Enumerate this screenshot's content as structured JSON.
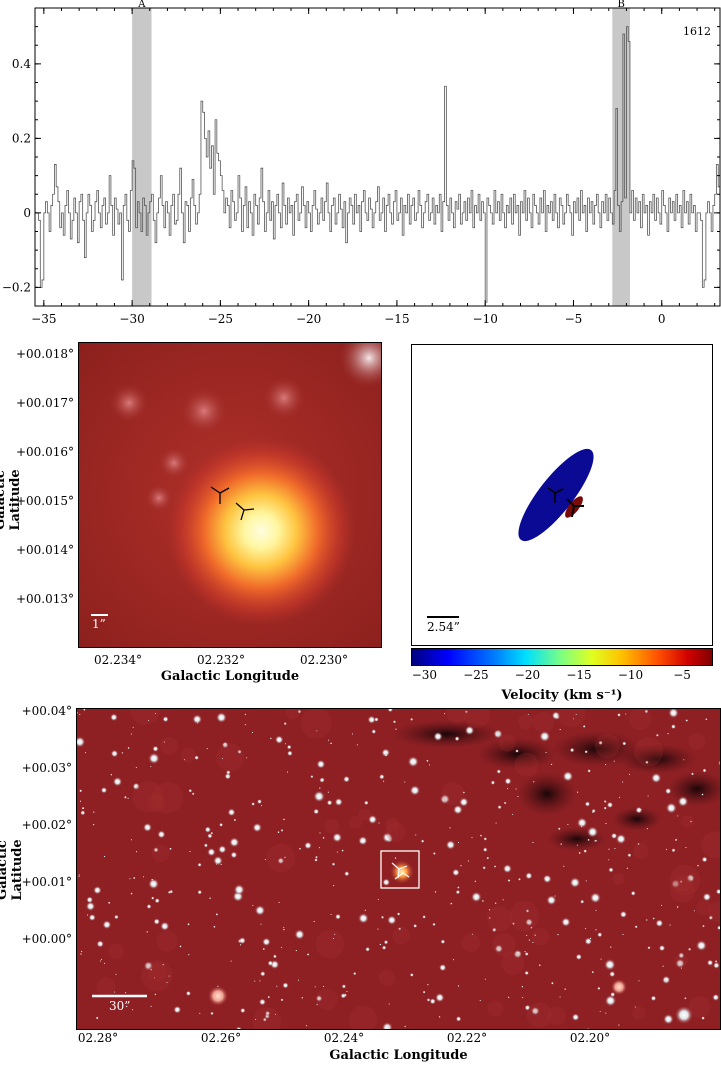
{
  "spectrum": {
    "chart_data": {
      "type": "line",
      "title": "",
      "xlabel": "",
      "ylabel": "",
      "xlim": [
        -35.5,
        3.3
      ],
      "ylim": [
        -0.25,
        0.55
      ],
      "label_1612": "1612",
      "x_ticks": [
        -35,
        -30,
        -25,
        -20,
        -15,
        -10,
        -5,
        0
      ],
      "y_ticks": [
        -0.2,
        0,
        0.2,
        0.4
      ],
      "y_tick_labels": [
        "−0.2",
        "0",
        "0.2",
        "0.4"
      ],
      "x_tick_labels": [
        "−35",
        "−30",
        "−25",
        "−20",
        "−15",
        "−10",
        "−5",
        "0"
      ],
      "shaded_bands": [
        {
          "label": "A",
          "from": -30.0,
          "to": -28.9
        },
        {
          "label": "B",
          "from": -2.8,
          "to": -1.8
        }
      ],
      "series": [
        {
          "step_width": 0.1,
          "x_start": -35.5,
          "values": [
            0.0,
            0.0,
            -0.02,
            -0.2,
            -0.18,
            0.0,
            0.03,
            0.0,
            -0.05,
            0.02,
            0.05,
            0.13,
            0.07,
            0.03,
            -0.04,
            0.0,
            -0.06,
            0.02,
            0.06,
            0.0,
            -0.07,
            -0.02,
            0.04,
            0.0,
            -0.08,
            0.03,
            0.05,
            -0.02,
            -0.12,
            0.0,
            0.05,
            0.02,
            -0.05,
            -0.02,
            0.03,
            0.06,
            0.0,
            -0.04,
            0.02,
            0.04,
            -0.03,
            0.0,
            0.1,
            0.02,
            -0.06,
            0.04,
            0.01,
            -0.03,
            0.0,
            -0.18,
            0.02,
            0.05,
            -0.02,
            -0.05,
            0.06,
            0.14,
            0.12,
            -0.04,
            0.03,
            0.0,
            -0.05,
            0.04,
            0.02,
            -0.06,
            0.0,
            0.03,
            0.05,
            -0.02,
            -0.08,
            0.0,
            0.04,
            0.1,
            0.02,
            -0.04,
            0.03,
            0.0,
            -0.06,
            0.02,
            0.05,
            -0.03,
            -0.02,
            0.05,
            0.12,
            0.0,
            -0.08,
            0.03,
            0.02,
            -0.05,
            0.04,
            0.09,
            0.02,
            -0.03,
            0.0,
            0.05,
            0.3,
            0.27,
            0.2,
            0.15,
            0.22,
            0.12,
            0.18,
            0.05,
            0.25,
            0.16,
            0.14,
            0.1,
            0.06,
            0.0,
            0.04,
            0.02,
            -0.04,
            0.06,
            0.03,
            -0.02,
            0.0,
            0.1,
            0.04,
            -0.05,
            0.02,
            0.07,
            -0.04,
            0.03,
            0.0,
            -0.06,
            0.05,
            0.02,
            -0.03,
            0.04,
            0.12,
            0.03,
            -0.05,
            0.0,
            0.06,
            -0.02,
            0.03,
            -0.07,
            0.02,
            0.05,
            0.0,
            -0.04,
            0.08,
            0.02,
            -0.03,
            0.04,
            0.0,
            0.02,
            -0.06,
            0.03,
            0.05,
            -0.02,
            0.0,
            0.07,
            0.02,
            -0.04,
            0.03,
            0.0,
            -0.05,
            0.02,
            0.06,
            0.01,
            -0.03,
            0.0,
            0.04,
            -0.02,
            0.03,
            0.08,
            0.0,
            -0.05,
            0.02,
            0.04,
            -0.03,
            0.0,
            0.05,
            0.01,
            -0.04,
            0.03,
            -0.08,
            0.0,
            0.04,
            0.02,
            -0.03,
            0.05,
            0.0,
            0.02,
            -0.05,
            0.03,
            0.06,
            0.0,
            -0.02,
            0.04,
            0.01,
            -0.04,
            0.0,
            0.03,
            0.07,
            -0.02,
            0.0,
            0.04,
            -0.05,
            0.02,
            0.05,
            0.0,
            -0.03,
            0.03,
            0.06,
            -0.02,
            0.0,
            0.04,
            -0.06,
            0.02,
            0.0,
            0.05,
            -0.03,
            0.02,
            0.04,
            -0.02,
            0.0,
            0.06,
            0.02,
            -0.04,
            0.0,
            0.03,
            0.05,
            -0.02,
            0.0,
            0.04,
            -0.03,
            0.02,
            0.0,
            0.05,
            -0.05,
            0.03,
            0.0,
            0.02,
            -0.02,
            0.04,
            0.0,
            -0.04,
            0.03,
            0.01,
            0.05,
            -0.03,
            0.0,
            0.03,
            -0.02,
            0.04,
            0.0,
            0.06,
            -0.04,
            0.02,
            0.0,
            0.05,
            -0.02,
            0.03,
            0.0,
            -0.05,
            0.04,
            0.02,
            0.0,
            -0.03,
            0.06,
            0.0,
            0.03,
            -0.02,
            0.05,
            0.0,
            -0.04,
            0.02,
            0.0,
            0.04,
            -0.03,
            0.05,
            0.0,
            0.02,
            -0.06,
            0.03,
            0.0,
            0.06,
            -0.02,
            0.04,
            0.0,
            -0.04,
            0.05,
            0.02,
            0.0,
            -0.03,
            0.04,
            0.0,
            0.06,
            -0.05,
            0.02,
            0.0,
            0.03,
            -0.02,
            0.05,
            0.0,
            -0.04,
            0.04,
            0.02,
            -0.03,
            0.0,
            0.05,
            0.02,
            0.0,
            -0.06,
            0.03,
            0.0,
            0.04,
            -0.02,
            0.06,
            0.0,
            0.02,
            -0.05,
            0.04,
            0.0,
            0.03,
            -0.03,
            0.02,
            0.05,
            0.0,
            -0.04,
            0.03,
            0.0,
            0.05,
            -0.02,
            0.04,
            0.0,
            -0.03,
            0.06,
            0.0,
            0.02,
            -0.05,
            0.03,
            0.0,
            0.04,
            0.02,
            -0.03,
            0.0,
            0.06,
            -0.02,
            0.04,
            0.0,
            0.03,
            -0.04,
            0.05,
            0.0,
            0.02,
            -0.06,
            0.03,
            0.0,
            0.05,
            -0.02,
            0.04,
            0.0,
            -0.03,
            0.06,
            0.02,
            0.0,
            -0.05,
            0.04,
            0.0,
            0.03,
            -0.02,
            0.05,
            0.0,
            0.02,
            -0.04,
            0.06,
            0.0,
            0.03,
            -0.03,
            0.05,
            0.0,
            0.02,
            -0.05
          ],
          "spikes": [
            {
              "x": -12.3,
              "y": 0.34
            },
            {
              "x": -10.0,
              "y": -0.24
            },
            {
              "x": -2.6,
              "y": 0.28
            },
            {
              "x": -2.2,
              "y": 0.48
            },
            {
              "x": -2.0,
              "y": 0.5
            },
            {
              "x": -1.9,
              "y": 0.46
            }
          ]
        }
      ]
    }
  },
  "zoom_image": {
    "y_ticks": [
      "+00.018°",
      "+00.017°",
      "+00.016°",
      "+00.015°",
      "+00.014°",
      "+00.013°"
    ],
    "x_ticks": [
      "02.234°",
      "02.232°",
      "02.230°"
    ],
    "ylabel": "Galactic Latitude",
    "xlabel": "Galactic Longitude",
    "scalebar_label": "1”"
  },
  "velocity_panel": {
    "scalebar_label": "2.54”",
    "colorbar_ticks": [
      "−30",
      "−25",
      "−20",
      "−15",
      "−10",
      "−5"
    ],
    "colorbar_values": [
      -30,
      -25,
      -20,
      -15,
      -10,
      -5
    ],
    "colorbar_range": [
      -31.3,
      -2.0
    ],
    "xlabel": "Velocity (km s⁻¹)",
    "components": [
      {
        "velocity": -29.5,
        "color": "#0a0a95"
      },
      {
        "velocity": -2.3,
        "color": "#7a0a0a"
      }
    ]
  },
  "wide_image": {
    "y_ticks": [
      "+00.04°",
      "+00.03°",
      "+00.02°",
      "+00.01°",
      "+00.00°"
    ],
    "x_ticks": [
      "02.28°",
      "02.26°",
      "02.24°",
      "02.22°",
      "02.20°"
    ],
    "ylabel": "Galactic Latitude",
    "xlabel": "Galactic Longitude",
    "scalebar_label": "30”"
  }
}
